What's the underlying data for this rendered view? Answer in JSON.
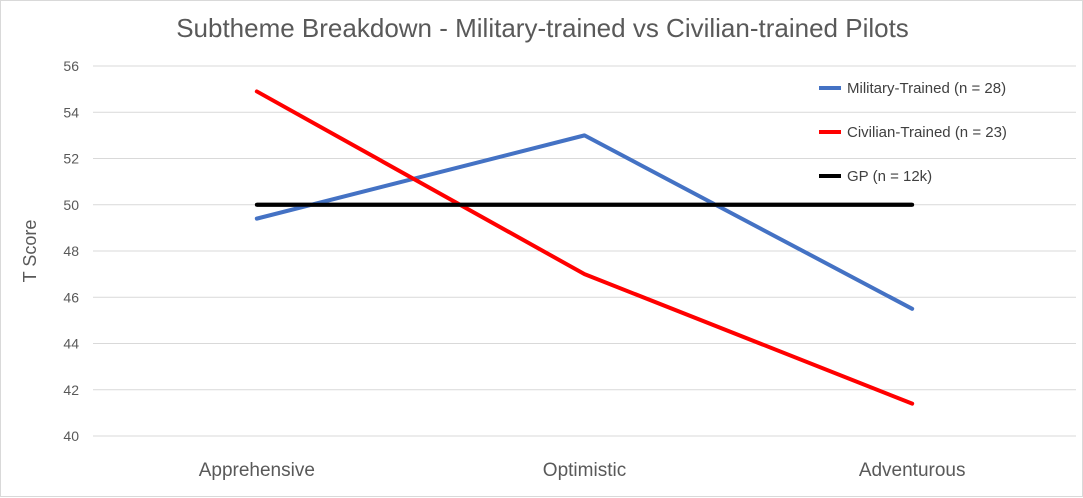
{
  "chart_data": {
    "type": "line",
    "title": "Subtheme Breakdown - Military-trained vs Civilian-trained Pilots",
    "xlabel": "",
    "ylabel": "T Score",
    "categories": [
      "Apprehensive",
      "Optimistic",
      "Adventurous"
    ],
    "ylim": [
      40,
      56
    ],
    "yticks": [
      40,
      42,
      44,
      46,
      48,
      50,
      52,
      54,
      56
    ],
    "grid": true,
    "legend_position": "top-right",
    "series": [
      {
        "name": "Military-Trained (n = 28)",
        "values": [
          49.4,
          53.0,
          45.5
        ],
        "color": "#4472C4"
      },
      {
        "name": "Civilian-Trained (n = 23)",
        "values": [
          54.9,
          47.0,
          41.4
        ],
        "color": "#FF0000"
      },
      {
        "name": "GP (n = 12k)",
        "values": [
          50.0,
          50.0,
          50.0
        ],
        "color": "#000000"
      }
    ]
  }
}
